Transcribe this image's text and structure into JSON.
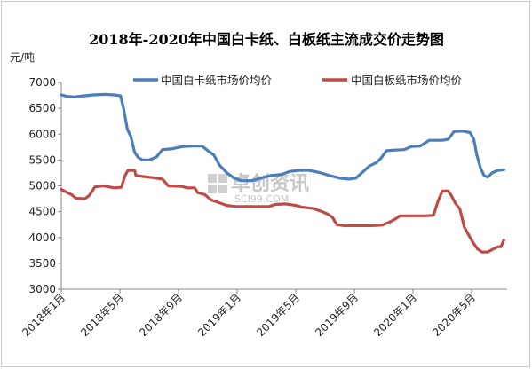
{
  "chart_data": {
    "type": "line",
    "title": "2018年-2020年中国白卡纸、白板纸主流成交价走势图",
    "ylabel": "元/吨",
    "ylim": [
      3000,
      7000
    ],
    "yticks": [
      3000,
      3500,
      4000,
      4500,
      5000,
      5500,
      6000,
      6500,
      7000
    ],
    "xtick_labels": [
      "2018年1月",
      "2018年5月",
      "2018年9月",
      "2019年1月",
      "2019年5月",
      "2019年9月",
      "2020年1月",
      "2020年5月"
    ],
    "xtick_index": [
      0,
      4,
      8,
      12,
      16,
      20,
      24,
      28
    ],
    "x_range": [
      0,
      30.2
    ],
    "grid": false,
    "legend_position": "top",
    "watermark": [
      "卓创资讯",
      "SCI99.COM"
    ],
    "series": [
      {
        "name": "中国白卡纸市场价均价",
        "color": "#4a7ebb",
        "points": [
          [
            0,
            6760
          ],
          [
            0.4,
            6730
          ],
          [
            0.9,
            6720
          ],
          [
            1.5,
            6740
          ],
          [
            2.2,
            6760
          ],
          [
            3.0,
            6770
          ],
          [
            3.6,
            6760
          ],
          [
            4.05,
            6740
          ],
          [
            4.25,
            6500
          ],
          [
            4.5,
            6100
          ],
          [
            4.75,
            5950
          ],
          [
            5.0,
            5650
          ],
          [
            5.25,
            5550
          ],
          [
            5.55,
            5500
          ],
          [
            6.0,
            5500
          ],
          [
            6.5,
            5560
          ],
          [
            6.9,
            5700
          ],
          [
            7.6,
            5720
          ],
          [
            8.3,
            5760
          ],
          [
            9.0,
            5770
          ],
          [
            9.6,
            5770
          ],
          [
            10.0,
            5680
          ],
          [
            10.4,
            5600
          ],
          [
            10.8,
            5400
          ],
          [
            11.3,
            5250
          ],
          [
            11.8,
            5150
          ],
          [
            12.3,
            5100
          ],
          [
            13.0,
            5100
          ],
          [
            13.6,
            5150
          ],
          [
            14.3,
            5200
          ],
          [
            15.0,
            5220
          ],
          [
            15.6,
            5280
          ],
          [
            16.3,
            5300
          ],
          [
            16.9,
            5300
          ],
          [
            17.6,
            5260
          ],
          [
            18.3,
            5200
          ],
          [
            19.0,
            5150
          ],
          [
            19.6,
            5130
          ],
          [
            20.1,
            5150
          ],
          [
            20.5,
            5250
          ],
          [
            21.0,
            5380
          ],
          [
            21.5,
            5450
          ],
          [
            21.8,
            5530
          ],
          [
            22.2,
            5680
          ],
          [
            22.6,
            5690
          ],
          [
            23.4,
            5700
          ],
          [
            23.9,
            5760
          ],
          [
            24.5,
            5770
          ],
          [
            25.1,
            5880
          ],
          [
            26.0,
            5880
          ],
          [
            26.4,
            5900
          ],
          [
            26.8,
            6050
          ],
          [
            27.4,
            6060
          ],
          [
            27.9,
            6030
          ],
          [
            28.15,
            5900
          ],
          [
            28.35,
            5600
          ],
          [
            28.6,
            5350
          ],
          [
            28.85,
            5200
          ],
          [
            29.1,
            5170
          ],
          [
            29.4,
            5250
          ],
          [
            29.8,
            5300
          ],
          [
            30.2,
            5310
          ]
        ]
      },
      {
        "name": "中国白板纸市场价均价",
        "color": "#be4b48",
        "points": [
          [
            0,
            4930
          ],
          [
            0.4,
            4870
          ],
          [
            0.7,
            4830
          ],
          [
            1.0,
            4760
          ],
          [
            1.6,
            4750
          ],
          [
            1.9,
            4810
          ],
          [
            2.3,
            4980
          ],
          [
            2.9,
            5000
          ],
          [
            3.6,
            4960
          ],
          [
            4.1,
            4970
          ],
          [
            4.35,
            5200
          ],
          [
            4.55,
            5300
          ],
          [
            5.0,
            5300
          ],
          [
            5.1,
            5200
          ],
          [
            5.6,
            5180
          ],
          [
            6.2,
            5160
          ],
          [
            6.9,
            5130
          ],
          [
            7.3,
            5000
          ],
          [
            8.2,
            4990
          ],
          [
            8.6,
            4960
          ],
          [
            9.1,
            4960
          ],
          [
            9.3,
            4870
          ],
          [
            9.8,
            4830
          ],
          [
            10.2,
            4730
          ],
          [
            10.7,
            4680
          ],
          [
            11.3,
            4620
          ],
          [
            11.9,
            4600
          ],
          [
            12.6,
            4600
          ],
          [
            13.3,
            4600
          ],
          [
            14.2,
            4600
          ],
          [
            14.6,
            4640
          ],
          [
            15.3,
            4650
          ],
          [
            16.0,
            4620
          ],
          [
            16.4,
            4590
          ],
          [
            17.2,
            4560
          ],
          [
            17.8,
            4500
          ],
          [
            18.2,
            4450
          ],
          [
            18.5,
            4390
          ],
          [
            18.8,
            4250
          ],
          [
            19.3,
            4230
          ],
          [
            20.0,
            4230
          ],
          [
            20.6,
            4230
          ],
          [
            21.2,
            4230
          ],
          [
            21.9,
            4240
          ],
          [
            22.4,
            4300
          ],
          [
            22.8,
            4360
          ],
          [
            23.1,
            4420
          ],
          [
            23.6,
            4420
          ],
          [
            24.3,
            4420
          ],
          [
            24.9,
            4420
          ],
          [
            25.4,
            4430
          ],
          [
            25.7,
            4700
          ],
          [
            26.0,
            4900
          ],
          [
            26.4,
            4900
          ],
          [
            26.6,
            4820
          ],
          [
            26.9,
            4660
          ],
          [
            27.2,
            4550
          ],
          [
            27.5,
            4200
          ],
          [
            27.8,
            4050
          ],
          [
            28.1,
            3900
          ],
          [
            28.4,
            3780
          ],
          [
            28.7,
            3720
          ],
          [
            29.1,
            3720
          ],
          [
            29.5,
            3780
          ],
          [
            29.8,
            3820
          ],
          [
            30.0,
            3820
          ],
          [
            30.2,
            3950
          ]
        ]
      }
    ]
  }
}
